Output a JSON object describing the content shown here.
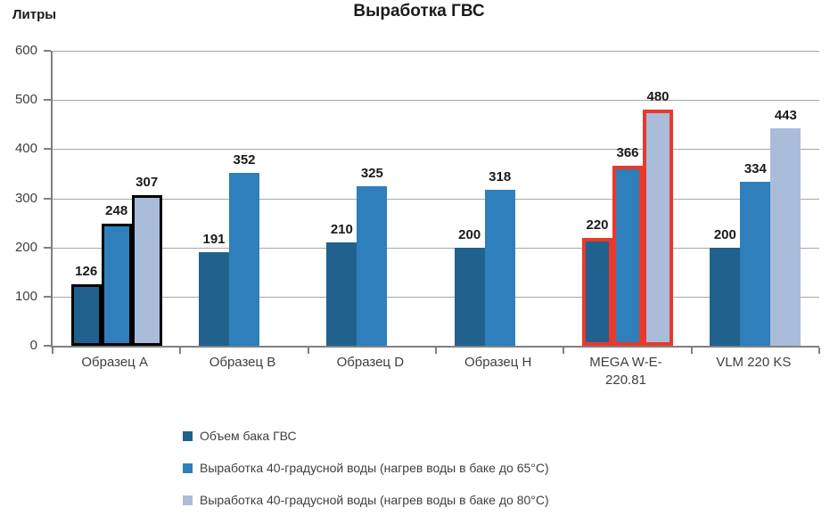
{
  "chart_data": {
    "type": "bar",
    "title": "Выработка ГВС",
    "ylabel": "Литры",
    "ylim": [
      0,
      600
    ],
    "ytick_step": 100,
    "grid": true,
    "legend_position": "bottom-left",
    "categories": [
      "Образец A",
      "Образец B",
      "Образец D",
      "Образец H",
      "MEGA W-E-220.81",
      "VLM 220 KS"
    ],
    "series": [
      {
        "name": "Объем бака ГВС",
        "color": "#21618E",
        "values": [
          126,
          191,
          210,
          200,
          220,
          200
        ]
      },
      {
        "name": "Выработка 40-градусной воды (нагрев воды в баке до 65°C)",
        "color": "#2E7FBC",
        "values": [
          248,
          352,
          325,
          318,
          366,
          334
        ]
      },
      {
        "name": "Выработка 40-градусной воды (нагрев воды в баке до 80°C)",
        "color": "#A9BCD9",
        "values": [
          307,
          null,
          null,
          null,
          480,
          443
        ]
      }
    ],
    "highlighted_groups": [
      {
        "category_index": 0,
        "outline_color": "#000000",
        "outline_width": 3
      },
      {
        "category_index": 4,
        "outline_color": "#E8392B",
        "outline_width": 4
      }
    ],
    "colors": {
      "grid": "#A6A6A6",
      "axis": "#808080",
      "axis_text": "#3F3F3F",
      "data_label": "#1A1A1A"
    }
  }
}
